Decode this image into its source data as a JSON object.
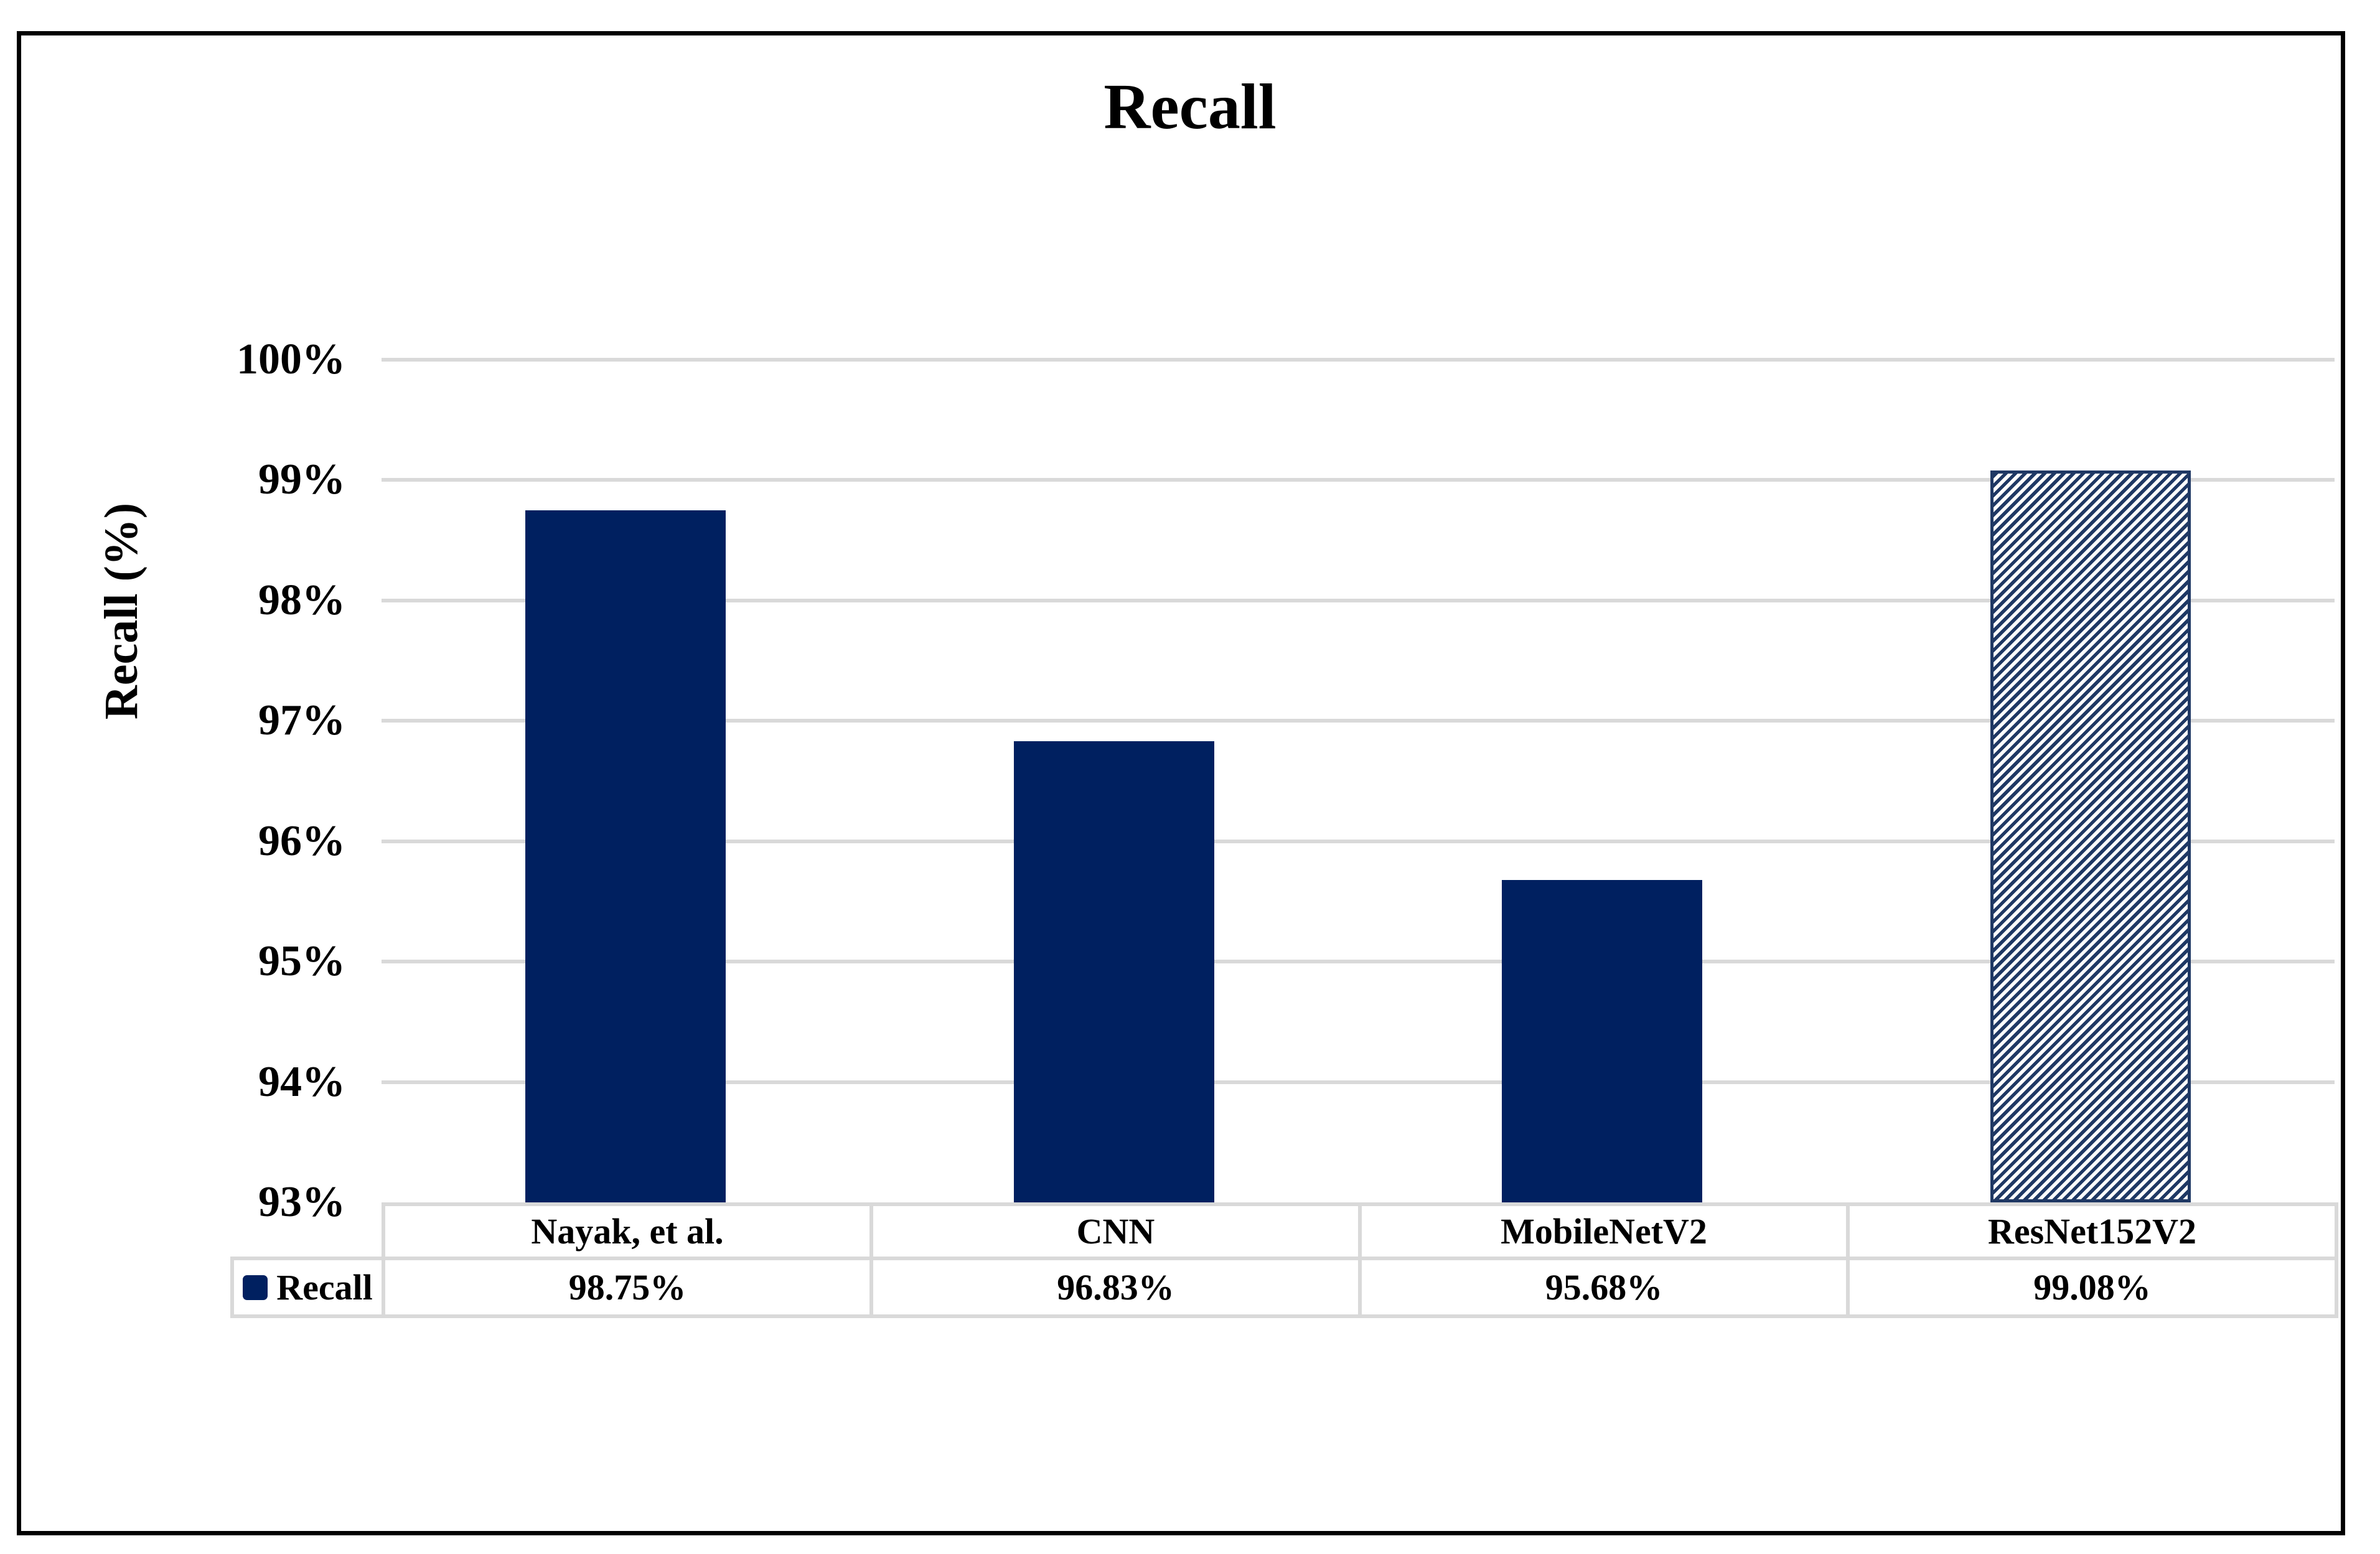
{
  "chart_data": {
    "type": "bar",
    "title": "Recall",
    "ylabel": "Recall (%)",
    "categories": [
      "Nayak, et al.",
      "CNN",
      "MobileNetV2",
      "ResNet152V2"
    ],
    "series": [
      {
        "name": "Recall",
        "values": [
          98.75,
          96.83,
          95.68,
          99.08
        ],
        "value_labels": [
          "98.75%",
          "96.83%",
          "95.68%",
          "99.08%"
        ]
      }
    ],
    "ylim": [
      93,
      100
    ],
    "ytick_step": 1,
    "ytick_labels": [
      "100%",
      "99%",
      "98%",
      "97%",
      "96%",
      "95%",
      "94%",
      "93%"
    ],
    "grid": true,
    "legend_position": "bottom-table-left",
    "hatched_bar_index": 3,
    "hatch_style": "diagonal-up",
    "icons": {
      "legend_swatch": "filled-square"
    },
    "colors": {
      "bar_fill": "#002060",
      "hatch_stripe": "#1F3864",
      "hatch_background": "#FFFFFF",
      "gridline": "#D9D9D9",
      "table_border": "#D9D9D9",
      "frame_border": "#000000",
      "text": "#000000"
    }
  }
}
